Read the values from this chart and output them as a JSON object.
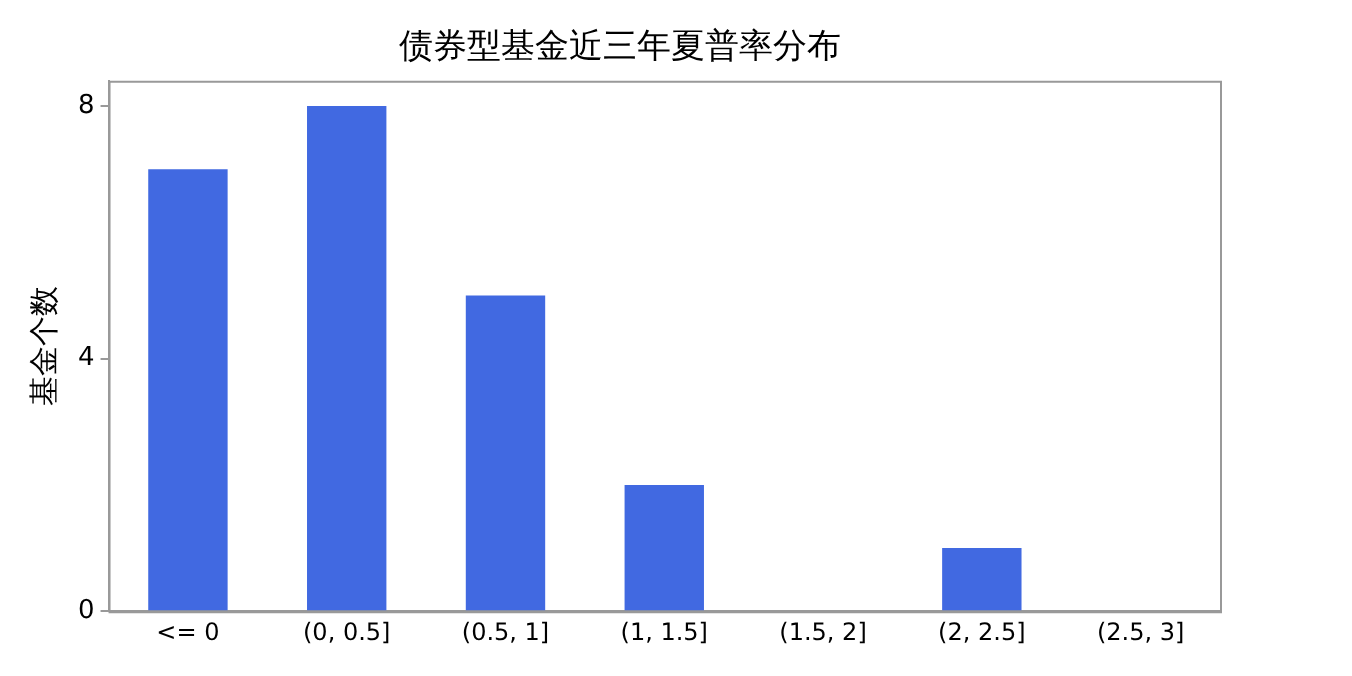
{
  "chart_data": {
    "type": "bar",
    "title": "债券型基金近三年夏普率分布",
    "ylabel": "基金个数",
    "categories": [
      "<= 0",
      "(0, 0.5]",
      "(0.5, 1]",
      "(1, 1.5]",
      "(1.5, 2]",
      "(2, 2.5]",
      "(2.5, 3]"
    ],
    "values": [
      7,
      8,
      5,
      2,
      0,
      1,
      0
    ],
    "color": "#4169e1",
    "ylim": [
      0,
      8.4
    ],
    "yticks": [
      0,
      4,
      8
    ],
    "grid": false,
    "legend": false
  }
}
